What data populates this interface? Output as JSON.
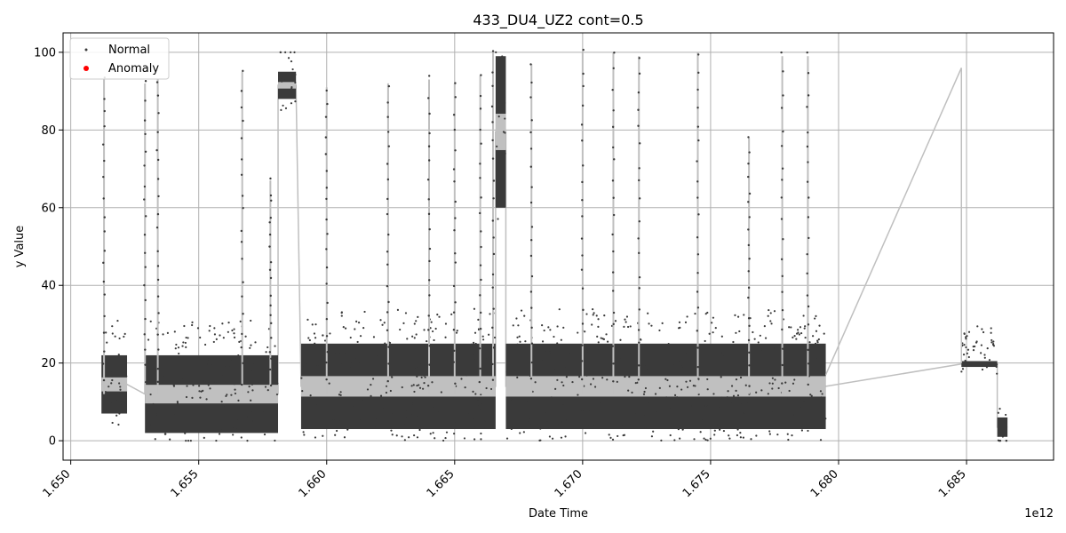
{
  "chart_data": {
    "type": "scatter",
    "title": "433_DU4_UZ2 cont=0.5",
    "xlabel": "Date Time",
    "ylabel": "y Value",
    "x_offset_label": "1e12",
    "xlim": [
      1.6497,
      1.6884
    ],
    "ylim": [
      -5,
      105
    ],
    "x_ticks": [
      1.65,
      1.655,
      1.66,
      1.665,
      1.67,
      1.675,
      1.68,
      1.685
    ],
    "x_tick_labels": [
      "1.650",
      "1.655",
      "1.660",
      "1.665",
      "1.670",
      "1.675",
      "1.680",
      "1.685"
    ],
    "y_ticks": [
      0,
      20,
      40,
      60,
      80,
      100
    ],
    "y_tick_labels": [
      "0",
      "20",
      "40",
      "60",
      "80",
      "100"
    ],
    "grid": true,
    "legend_position": "top-left",
    "colors": {
      "normal": "#3a3a3a",
      "anomaly": "#ff0000",
      "line": "#bfbfbf",
      "band": "#c0c0c0"
    },
    "series": [
      {
        "name": "Normal",
        "marker": "dot",
        "color": "#3a3a3a",
        "segments": [
          {
            "x_start": 1.6512,
            "x_end": 1.6522,
            "low": 7,
            "high": 22
          },
          {
            "x_start": 1.6529,
            "x_end": 1.6581,
            "low": 2,
            "high": 22
          },
          {
            "x_start": 1.6581,
            "x_end": 1.6588,
            "low": 88,
            "high": 95
          },
          {
            "x_start": 1.659,
            "x_end": 1.6666,
            "low": 3,
            "high": 25
          },
          {
            "x_start": 1.6666,
            "x_end": 1.667,
            "low": 60,
            "high": 99
          },
          {
            "x_start": 1.667,
            "x_end": 1.6795,
            "low": 3,
            "high": 25
          },
          {
            "x_start": 1.6848,
            "x_end": 1.6862,
            "low": 19,
            "high": 20.5
          },
          {
            "x_start": 1.6862,
            "x_end": 1.6866,
            "low": 1,
            "high": 6
          }
        ],
        "spikes": [
          {
            "x": 1.6513,
            "y": 93
          },
          {
            "x": 1.6529,
            "y": 92
          },
          {
            "x": 1.6534,
            "y": 93
          },
          {
            "x": 1.6567,
            "y": 95
          },
          {
            "x": 1.6578,
            "y": 67
          },
          {
            "x": 1.66,
            "y": 91
          },
          {
            "x": 1.6624,
            "y": 92
          },
          {
            "x": 1.664,
            "y": 93
          },
          {
            "x": 1.665,
            "y": 92
          },
          {
            "x": 1.666,
            "y": 94
          },
          {
            "x": 1.6665,
            "y": 100
          },
          {
            "x": 1.668,
            "y": 97
          },
          {
            "x": 1.67,
            "y": 100
          },
          {
            "x": 1.6712,
            "y": 100
          },
          {
            "x": 1.6722,
            "y": 99
          },
          {
            "x": 1.6745,
            "y": 100
          },
          {
            "x": 1.6765,
            "y": 78
          },
          {
            "x": 1.6778,
            "y": 99
          },
          {
            "x": 1.6788,
            "y": 99
          }
        ]
      },
      {
        "name": "Anomaly",
        "marker": "dot",
        "color": "#ff0000",
        "points": []
      }
    ]
  }
}
